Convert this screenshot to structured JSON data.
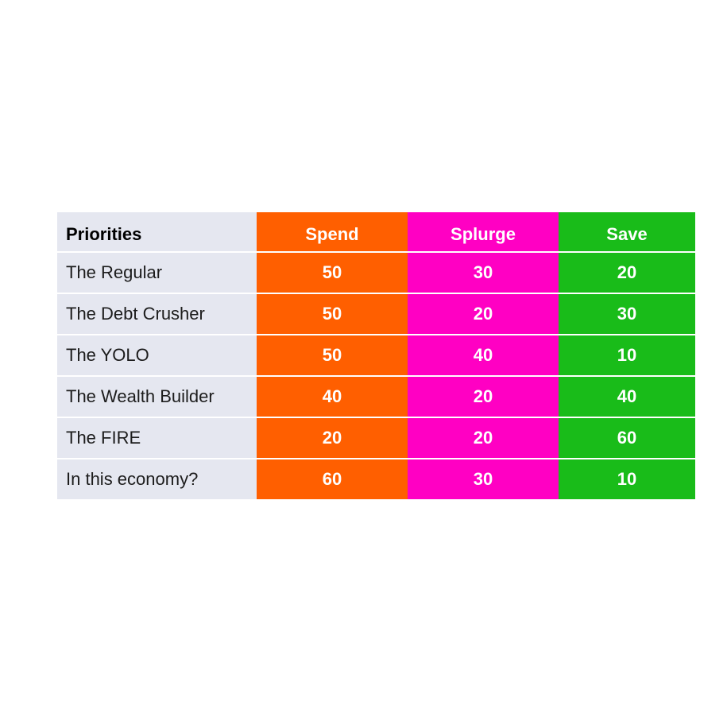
{
  "colors": {
    "label_bg": "#e5e7f0",
    "spend": "#ff5f00",
    "splurge": "#ff00c3",
    "save": "#19bc19",
    "value_text": "#ffffff"
  },
  "chart_data": {
    "type": "table",
    "columns": [
      "Priorities",
      "Spend",
      "Splurge",
      "Save"
    ],
    "rows": [
      {
        "name": "The Regular",
        "values": [
          50,
          30,
          20
        ]
      },
      {
        "name": "The Debt Crusher",
        "values": [
          50,
          20,
          30
        ]
      },
      {
        "name": "The YOLO",
        "values": [
          50,
          40,
          10
        ]
      },
      {
        "name": "The Wealth Builder",
        "values": [
          40,
          20,
          40
        ]
      },
      {
        "name": "The FIRE",
        "values": [
          20,
          20,
          60
        ]
      },
      {
        "name": "In this economy?",
        "values": [
          60,
          30,
          10
        ]
      }
    ]
  }
}
